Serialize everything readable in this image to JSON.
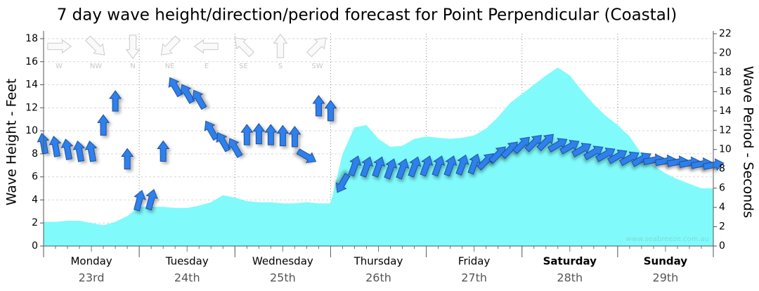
{
  "chart_data": {
    "type": "area",
    "title": "7 day wave height/direction/period forecast for Point Perpendicular (Coastal)",
    "y_label": "Wave Height - Feet",
    "y2_label": "Wave Period - Seconds",
    "watermark": "www.seabreeze.com.au",
    "compass_labels": [
      "W",
      "NW",
      "N",
      "NE",
      "E",
      "SE",
      "S",
      "SW"
    ],
    "days": [
      {
        "name": "Monday",
        "date": "23rd",
        "bold": false
      },
      {
        "name": "Tuesday",
        "date": "24th",
        "bold": false
      },
      {
        "name": "Wednesday",
        "date": "25th",
        "bold": false
      },
      {
        "name": "Thursday",
        "date": "26th",
        "bold": false
      },
      {
        "name": "Friday",
        "date": "27th",
        "bold": false
      },
      {
        "name": "Saturday",
        "date": "28th",
        "bold": true
      },
      {
        "name": "Sunday",
        "date": "29th",
        "bold": true
      }
    ],
    "xlim": [
      0,
      168
    ],
    "xticks": [
      0,
      24,
      48,
      72,
      96,
      120,
      144,
      168
    ],
    "ylim": [
      0,
      18
    ],
    "yticks": [
      0,
      2,
      4,
      6,
      8,
      10,
      12,
      14,
      16,
      18
    ],
    "y2lim": [
      0,
      22
    ],
    "y2ticks": [
      0,
      2,
      4,
      6,
      8,
      10,
      12,
      14,
      16,
      18,
      20,
      22
    ],
    "grid": true,
    "x": [
      0,
      3,
      6,
      9,
      12,
      15,
      18,
      21,
      24,
      27,
      30,
      33,
      36,
      39,
      42,
      45,
      48,
      51,
      54,
      57,
      60,
      63,
      66,
      69,
      72,
      75,
      78,
      81,
      84,
      87,
      90,
      93,
      96,
      99,
      102,
      105,
      108,
      111,
      114,
      117,
      120,
      123,
      126,
      129,
      132,
      135,
      138,
      141,
      144,
      147,
      150,
      153,
      156,
      159,
      162,
      165,
      168
    ],
    "series": [
      {
        "type": "area",
        "color": "#80fafa",
        "values": [
          2.1,
          2.1,
          2.2,
          2.2,
          2.0,
          1.8,
          2.1,
          2.6,
          3.4,
          3.4,
          3.4,
          3.3,
          3.3,
          3.5,
          3.8,
          4.4,
          4.2,
          3.9,
          3.8,
          3.8,
          3.7,
          3.7,
          3.8,
          3.7,
          3.7,
          8.0,
          10.3,
          10.5,
          9.3,
          8.6,
          8.7,
          9.3,
          9.5,
          9.4,
          9.3,
          9.4,
          9.6,
          10.2,
          11.2,
          12.4,
          13.2,
          14.0,
          14.8,
          15.5,
          14.8,
          13.5,
          12.3,
          11.3,
          10.5,
          9.5,
          8.0,
          7.0,
          6.3,
          5.8,
          5.4,
          5.0,
          5.0
        ]
      },
      {
        "type": "arrows",
        "axis": "y2",
        "color": "#2f80ed",
        "values": [
          10.6,
          10.3,
          10.0,
          9.8,
          9.8,
          12.5,
          15.0,
          9.0,
          4.7,
          4.8,
          9.8,
          16.5,
          15.8,
          15.2,
          12.0,
          10.8,
          10.2,
          11.5,
          11.6,
          11.5,
          11.4,
          11.3,
          9.3,
          14.5,
          14.0,
          6.5,
          8.3,
          8.2,
          8.2,
          8.0,
          8.0,
          8.2,
          8.3,
          8.3,
          8.3,
          8.4,
          8.5,
          8.8,
          9.5,
          10.0,
          10.5,
          10.7,
          10.8,
          10.5,
          10.3,
          10.0,
          9.7,
          9.5,
          9.3,
          9.1,
          9.0,
          8.9,
          8.8,
          8.7,
          8.6,
          8.5,
          8.4
        ],
        "directions": [
          350,
          350,
          350,
          350,
          350,
          0,
          0,
          0,
          15,
          15,
          0,
          330,
          330,
          330,
          330,
          330,
          330,
          0,
          0,
          0,
          0,
          0,
          120,
          0,
          0,
          210,
          20,
          20,
          20,
          20,
          20,
          20,
          20,
          20,
          20,
          20,
          20,
          45,
          45,
          45,
          45,
          45,
          45,
          60,
          60,
          60,
          60,
          60,
          60,
          60,
          60,
          80,
          80,
          80,
          80,
          80,
          80
        ]
      }
    ]
  }
}
